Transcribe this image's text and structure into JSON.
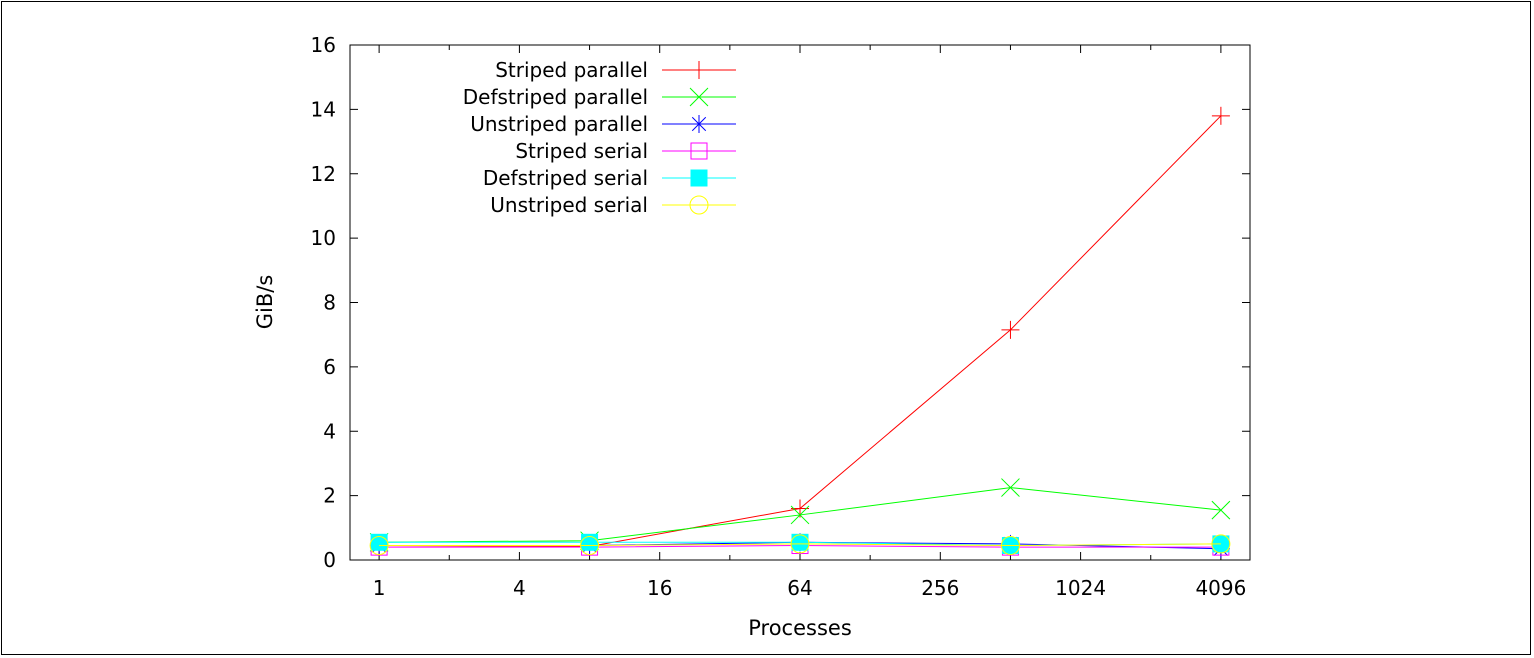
{
  "chart_data": {
    "type": "line",
    "title": "",
    "xlabel": "Processes",
    "ylabel": "GiB/s",
    "x_scale": "log2",
    "xlim": [
      0.75,
      5461
    ],
    "ylim": [
      0,
      16
    ],
    "x_ticks": [
      1,
      4,
      16,
      64,
      256,
      1024,
      4096
    ],
    "x_tick_labels": [
      "1",
      "4",
      "16",
      "64",
      "256",
      "1024",
      "4096"
    ],
    "y_ticks": [
      0,
      2,
      4,
      6,
      8,
      10,
      12,
      14,
      16
    ],
    "y_tick_labels": [
      "0",
      "2",
      "4",
      "6",
      "8",
      "10",
      "12",
      "14",
      "16"
    ],
    "grid": false,
    "legend_position": "top-left",
    "x": [
      1,
      8,
      64,
      512,
      4096
    ],
    "series": [
      {
        "name": "Striped parallel",
        "color": "#ff0000",
        "marker": "plus",
        "values": [
          0.45,
          0.42,
          1.6,
          7.15,
          13.8
        ]
      },
      {
        "name": "Defstriped parallel",
        "color": "#00ff00",
        "marker": "cross",
        "values": [
          0.55,
          0.6,
          1.4,
          2.25,
          1.55
        ]
      },
      {
        "name": "Unstriped parallel",
        "color": "#0000ff",
        "marker": "asterisk",
        "values": [
          0.45,
          0.45,
          0.55,
          0.5,
          0.35
        ]
      },
      {
        "name": "Striped serial",
        "color": "#ff00ff",
        "marker": "open-square",
        "values": [
          0.4,
          0.4,
          0.45,
          0.4,
          0.4
        ]
      },
      {
        "name": "Defstriped serial",
        "color": "#00ffff",
        "marker": "filled-square",
        "values": [
          0.55,
          0.55,
          0.55,
          0.45,
          0.5
        ]
      },
      {
        "name": "Unstriped serial",
        "color": "#ffff00",
        "marker": "open-circle",
        "values": [
          0.45,
          0.45,
          0.5,
          0.45,
          0.5
        ]
      }
    ]
  }
}
